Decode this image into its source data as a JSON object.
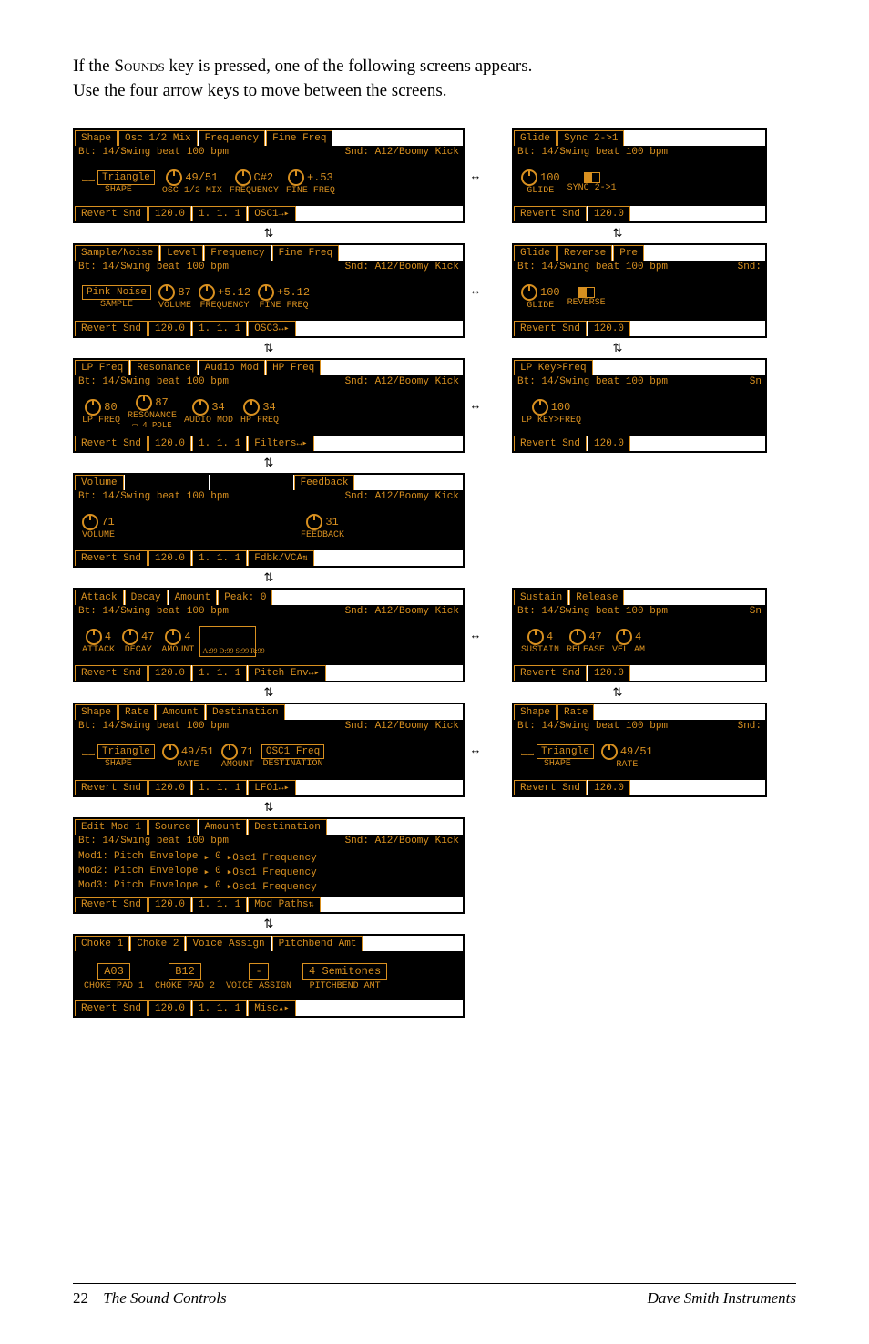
{
  "intro": {
    "line1a": "If the S",
    "line1b": "ounds",
    "line1c": " key is pressed, one of the following screens appears.",
    "line2": "Use the four arrow keys to move between the screens."
  },
  "screens": [
    {
      "left": {
        "tabs": [
          "Shape",
          "Osc 1/2 Mix",
          "Frequency",
          "Fine Freq"
        ],
        "sub_left": "Bt: 14/Swing beat 100 bpm",
        "sub_right": "Snd: A12/Boomy Kick",
        "params": [
          {
            "kind": "shape",
            "box": "Triangle",
            "label": "SHAPE"
          },
          {
            "kind": "knob",
            "value": "49/51",
            "label": "OSC 1/2 MIX"
          },
          {
            "kind": "knob",
            "value": "C#2",
            "label": "FREQUENCY"
          },
          {
            "kind": "knob",
            "value": "+.53",
            "label": "FINE FREQ"
          }
        ],
        "bottom": [
          "Revert Snd",
          "120.0",
          "1. 1. 1",
          "OSC1"
        ],
        "nav_icon": "→▸"
      },
      "right": {
        "tabs": [
          "Glide",
          "Sync 2->1"
        ],
        "sub_left": "Bt: 14/Swing beat 100 bpm",
        "params": [
          {
            "kind": "knob",
            "value": "100",
            "label": "GLIDE"
          },
          {
            "kind": "rect",
            "label": "SYNC 2->1"
          }
        ],
        "bottom": [
          "Revert Snd",
          "120.0"
        ]
      },
      "harrow": true,
      "varrow_left": true,
      "varrow_right": true
    },
    {
      "left": {
        "tabs": [
          "Sample/Noise",
          "Level",
          "Frequency",
          "Fine Freq"
        ],
        "sub_left": "Bt: 14/Swing beat 100 bpm",
        "sub_right": "Snd: A12/Boomy Kick",
        "params": [
          {
            "kind": "text",
            "box": "Pink Noise",
            "label": "SAMPLE"
          },
          {
            "kind": "knob",
            "value": "87",
            "label": "VOLUME"
          },
          {
            "kind": "knob",
            "value": "+5.12",
            "label": "FREQUENCY"
          },
          {
            "kind": "knob",
            "value": "+5.12",
            "label": "FINE FREQ"
          }
        ],
        "bottom": [
          "Revert Snd",
          "120.0",
          "1. 1. 1",
          "OSC3"
        ],
        "nav_icon": "↔▸"
      },
      "right": {
        "tabs": [
          "Glide",
          "Reverse",
          "Pre"
        ],
        "sub_left": "Bt: 14/Swing beat 100 bpm",
        "sub_right": "Snd:",
        "params": [
          {
            "kind": "knob",
            "value": "100",
            "label": "GLIDE"
          },
          {
            "kind": "rect",
            "label": "REVERSE"
          }
        ],
        "bottom": [
          "Revert Snd",
          "120.0"
        ]
      },
      "harrow": true,
      "varrow_left": true,
      "varrow_right": true
    },
    {
      "left": {
        "tabs": [
          "LP Freq",
          "Resonance",
          "Audio Mod",
          "HP Freq"
        ],
        "sub_left": "Bt: 14/Swing beat 100 bpm",
        "sub_right": "Snd: A12/Boomy Kick",
        "params": [
          {
            "kind": "knob",
            "value": "80",
            "label": "LP FREQ"
          },
          {
            "kind": "knob",
            "value": "87",
            "label": "RESONANCE",
            "extra": "▭ 4 POLE"
          },
          {
            "kind": "knob",
            "value": "34",
            "label": "AUDIO MOD"
          },
          {
            "kind": "knob",
            "value": "34",
            "label": "HP FREQ"
          }
        ],
        "bottom": [
          "Revert Snd",
          "120.0",
          "1. 1. 1",
          "Filters"
        ],
        "nav_icon": "↔▸"
      },
      "right": {
        "tabs": [
          "LP Key>Freq"
        ],
        "sub_left": "Bt: 14/Swing beat 100 bpm",
        "sub_right": "Sn",
        "params": [
          {
            "kind": "knob",
            "value": "100",
            "label": "LP KEY>FREQ"
          }
        ],
        "bottom": [
          "Revert Snd",
          "120.0"
        ]
      },
      "harrow": true,
      "varrow_left": true,
      "varrow_right": false
    },
    {
      "left": {
        "tabs": [
          "Volume",
          "",
          "",
          "Feedback"
        ],
        "sub_left": "Bt: 14/Swing beat 100 bpm",
        "sub_right": "Snd: A12/Boomy Kick",
        "params": [
          {
            "kind": "knob",
            "value": "71",
            "label": "VOLUME"
          },
          {
            "kind": "gap"
          },
          {
            "kind": "gap"
          },
          {
            "kind": "knob",
            "value": "31",
            "label": "FEEDBACK"
          }
        ],
        "bottom": [
          "Revert Snd",
          "120.0",
          "1. 1. 1",
          "Fdbk/VCA"
        ],
        "nav_icon": "⇅"
      },
      "varrow_left": true
    },
    {
      "left": {
        "tabs": [
          "Attack",
          "Decay",
          "Amount",
          "Peak: 0"
        ],
        "sub_left": "Bt: 14/Swing beat 100 bpm",
        "sub_right": "Snd: A12/Boomy Kick",
        "params": [
          {
            "kind": "knob",
            "value": "4",
            "label": "ATTACK"
          },
          {
            "kind": "knob",
            "value": "47",
            "label": "DECAY"
          },
          {
            "kind": "knob",
            "value": "4",
            "label": "AMOUNT"
          },
          {
            "kind": "env",
            "labels": "A:99 D:99 S:99 R:99"
          }
        ],
        "bottom": [
          "Revert Snd",
          "120.0",
          "1. 1. 1",
          "Pitch Env"
        ],
        "nav_icon": "↔▸"
      },
      "right": {
        "tabs": [
          "Sustain",
          "Release"
        ],
        "sub_left": "Bt: 14/Swing beat 100 bpm",
        "sub_right": "Sn",
        "params": [
          {
            "kind": "knob",
            "value": "4",
            "label": "SUSTAIN"
          },
          {
            "kind": "knob",
            "value": "47",
            "label": "RELEASE"
          },
          {
            "kind": "knob",
            "value": "4",
            "label": "VEL AM"
          }
        ],
        "bottom": [
          "Revert Snd",
          "120.0"
        ]
      },
      "harrow": true,
      "varrow_left": true,
      "varrow_right": true
    },
    {
      "left": {
        "tabs": [
          "Shape",
          "Rate",
          "Amount",
          "Destination"
        ],
        "sub_left": "Bt: 14/Swing beat 100 bpm",
        "sub_right": "Snd: A12/Boomy Kick",
        "params": [
          {
            "kind": "shape",
            "box": "Triangle",
            "label": "SHAPE"
          },
          {
            "kind": "knob",
            "value": "49/51",
            "label": "RATE"
          },
          {
            "kind": "knob",
            "value": "71",
            "label": "AMOUNT"
          },
          {
            "kind": "text",
            "box": "OSC1 Freq",
            "label": "DESTINATION"
          }
        ],
        "bottom": [
          "Revert Snd",
          "120.0",
          "1. 1. 1",
          "LFO1"
        ],
        "nav_icon": "↔▸"
      },
      "right": {
        "tabs": [
          "Shape",
          "Rate"
        ],
        "sub_left": "Bt: 14/Swing beat 100 bpm",
        "sub_right": "Snd:",
        "params": [
          {
            "kind": "shape",
            "box": "Triangle",
            "label": "SHAPE"
          },
          {
            "kind": "knob",
            "value": "49/51",
            "label": "RATE"
          }
        ],
        "bottom": [
          "Revert Snd",
          "120.0"
        ]
      },
      "harrow": true,
      "varrow_left": true,
      "varrow_right": false
    },
    {
      "left": {
        "tabs": [
          "Edit Mod 1",
          "Source",
          "Amount",
          "Destination"
        ],
        "sub_left": "Bt: 14/Swing beat 100 bpm",
        "sub_right": "Snd: A12/Boomy Kick",
        "mod_rows": [
          {
            "slot": "Mod1:",
            "src": "Pitch Envelope",
            "arr": "▸",
            "amt": "0",
            "dst": "▸Osc1 Frequency"
          },
          {
            "slot": "Mod2:",
            "src": "Pitch Envelope",
            "arr": "▸",
            "amt": "0",
            "dst": "▸Osc1 Frequency"
          },
          {
            "slot": "Mod3:",
            "src": "Pitch Envelope",
            "arr": "▸",
            "amt": "0",
            "dst": "▸Osc1 Frequency"
          }
        ],
        "bottom": [
          "Revert Snd",
          "120.0",
          "1. 1. 1",
          "Mod Paths"
        ],
        "nav_icon": "⇅"
      },
      "varrow_left": true
    },
    {
      "left": {
        "tabs": [
          "Choke 1",
          "Choke 2",
          "Voice Assign",
          "Pitchbend Amt"
        ],
        "sub_left": "",
        "choke": [
          {
            "box": "A03",
            "label": "CHOKE PAD 1"
          },
          {
            "box": "B12",
            "label": "CHOKE PAD 2"
          },
          {
            "box": "-",
            "label": "VOICE ASSIGN"
          },
          {
            "box": "4 Semitones",
            "label": "PITCHBEND AMT"
          }
        ],
        "bottom": [
          "Revert Snd",
          "120.0",
          "1. 1. 1",
          "Misc"
        ],
        "nav_icon": "▴▸"
      }
    }
  ],
  "footer": {
    "page": "22",
    "title": "The Sound Controls",
    "brand": "Dave Smith Instruments"
  },
  "colors": {
    "panel_bg": "#000000",
    "accent": "#d89020"
  }
}
